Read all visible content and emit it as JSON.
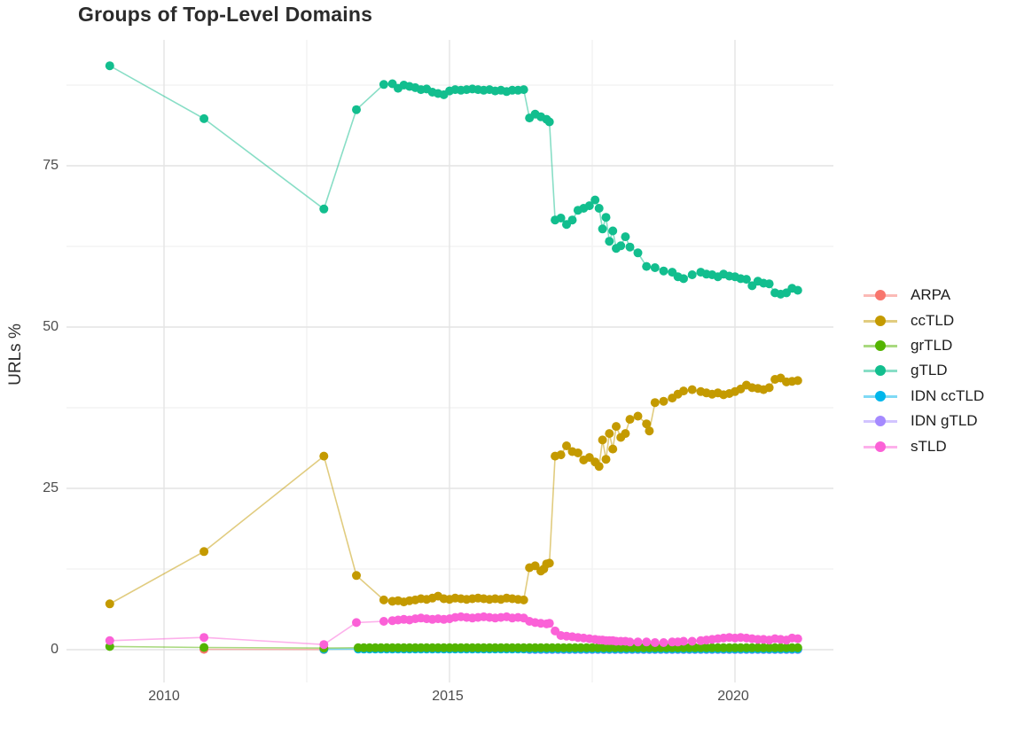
{
  "title": "Groups of Top-Level Domains",
  "axes": {
    "y_label": "URLs %",
    "y_ticks": [
      {
        "label": "0",
        "value": 0
      },
      {
        "label": "25",
        "value": 25
      },
      {
        "label": "50",
        "value": 50
      },
      {
        "label": "75",
        "value": 75
      }
    ],
    "y_minor": [
      12.5,
      37.5,
      62.5,
      87.5
    ],
    "x_ticks": [
      {
        "label": "2010",
        "value": 2010
      },
      {
        "label": "2015",
        "value": 2015
      },
      {
        "label": "2020",
        "value": 2020
      }
    ],
    "x_minor": [
      2012.5,
      2017.5
    ]
  },
  "colors": {
    "background": "#FFFFFF",
    "grid_major": "#E4E4E4",
    "grid_minor": "#F1F1F1",
    "title_text": "#2B2B2B",
    "tick_text": "#4D4D4D",
    "axis_label_text": "#2E2E2E",
    "legend_text": "#1C1C1C"
  },
  "legend": {
    "items": [
      {
        "key": "arpa",
        "label": "ARPA",
        "color": "#F8766D"
      },
      {
        "key": "cctld",
        "label": "ccTLD",
        "color": "#C49A00"
      },
      {
        "key": "grtld",
        "label": "grTLD",
        "color": "#53B400"
      },
      {
        "key": "gtld",
        "label": "gTLD",
        "color": "#12BE8E"
      },
      {
        "key": "idn-cctld",
        "label": "IDN ccTLD",
        "color": "#00B6EB"
      },
      {
        "key": "idn-gtld",
        "label": "IDN gTLD",
        "color": "#A58AFF"
      },
      {
        "key": "stld",
        "label": "sTLD",
        "color": "#FB61D7"
      }
    ]
  },
  "chart_data": {
    "type": "line",
    "title": "Groups of Top-Level Domains",
    "xlabel": "",
    "ylabel": "URLs %",
    "x_range": [
      2008.3,
      2021.7
    ],
    "y_range": [
      -5,
      94.5
    ],
    "grid": true,
    "legend_position": "right",
    "draw_order": [
      "arpa",
      "idn-gtld",
      "idn-cctld",
      "grtld",
      "gtld",
      "cctld",
      "stld"
    ],
    "series": [
      {
        "key": "arpa",
        "name": "ARPA",
        "color": "#F8766D",
        "points": [
          [
            2010.7,
            0.05
          ],
          [
            2012.8,
            0.03
          ]
        ]
      },
      {
        "key": "cctld",
        "name": "ccTLD",
        "color": "#C49A00",
        "points": [
          [
            2009.05,
            7.1
          ],
          [
            2010.7,
            15.2
          ],
          [
            2012.8,
            30.0
          ],
          [
            2013.37,
            11.5
          ],
          [
            2013.85,
            7.7
          ],
          [
            2014.0,
            7.5
          ],
          [
            2014.1,
            7.6
          ],
          [
            2014.2,
            7.4
          ],
          [
            2014.3,
            7.6
          ],
          [
            2014.4,
            7.7
          ],
          [
            2014.5,
            7.9
          ],
          [
            2014.6,
            7.8
          ],
          [
            2014.7,
            8.0
          ],
          [
            2014.8,
            8.3
          ],
          [
            2014.9,
            7.9
          ],
          [
            2015.0,
            7.8
          ],
          [
            2015.1,
            8.0
          ],
          [
            2015.2,
            7.9
          ],
          [
            2015.3,
            7.8
          ],
          [
            2015.4,
            7.9
          ],
          [
            2015.5,
            8.0
          ],
          [
            2015.6,
            7.9
          ],
          [
            2015.7,
            7.8
          ],
          [
            2015.8,
            7.9
          ],
          [
            2015.9,
            7.8
          ],
          [
            2016.0,
            8.0
          ],
          [
            2016.1,
            7.9
          ],
          [
            2016.2,
            7.8
          ],
          [
            2016.3,
            7.7
          ],
          [
            2016.4,
            12.7
          ],
          [
            2016.5,
            13.0
          ],
          [
            2016.6,
            12.2
          ],
          [
            2016.65,
            12.5
          ],
          [
            2016.7,
            13.3
          ],
          [
            2016.75,
            13.4
          ],
          [
            2016.85,
            30.0
          ],
          [
            2016.95,
            30.2
          ],
          [
            2017.05,
            31.6
          ],
          [
            2017.15,
            30.7
          ],
          [
            2017.25,
            30.5
          ],
          [
            2017.35,
            29.4
          ],
          [
            2017.45,
            29.8
          ],
          [
            2017.55,
            29.1
          ],
          [
            2017.62,
            28.4
          ],
          [
            2017.68,
            32.5
          ],
          [
            2017.74,
            29.5
          ],
          [
            2017.8,
            33.5
          ],
          [
            2017.86,
            31.1
          ],
          [
            2017.92,
            34.6
          ],
          [
            2018.0,
            32.9
          ],
          [
            2018.08,
            33.5
          ],
          [
            2018.16,
            35.7
          ],
          [
            2018.3,
            36.2
          ],
          [
            2018.45,
            35.0
          ],
          [
            2018.5,
            33.9
          ],
          [
            2018.6,
            38.3
          ],
          [
            2018.75,
            38.5
          ],
          [
            2018.9,
            39.0
          ],
          [
            2019.0,
            39.6
          ],
          [
            2019.1,
            40.1
          ],
          [
            2019.25,
            40.3
          ],
          [
            2019.4,
            40.0
          ],
          [
            2019.5,
            39.8
          ],
          [
            2019.6,
            39.6
          ],
          [
            2019.7,
            39.8
          ],
          [
            2019.8,
            39.5
          ],
          [
            2019.9,
            39.7
          ],
          [
            2020.0,
            40.0
          ],
          [
            2020.1,
            40.4
          ],
          [
            2020.2,
            41.0
          ],
          [
            2020.3,
            40.6
          ],
          [
            2020.4,
            40.5
          ],
          [
            2020.5,
            40.3
          ],
          [
            2020.6,
            40.6
          ],
          [
            2020.7,
            41.9
          ],
          [
            2020.8,
            42.1
          ],
          [
            2020.9,
            41.5
          ],
          [
            2021.0,
            41.6
          ],
          [
            2021.1,
            41.7
          ]
        ]
      },
      {
        "key": "grtld",
        "name": "grTLD",
        "color": "#53B400",
        "points": [
          [
            2009.05,
            0.5
          ],
          [
            2010.7,
            0.35
          ],
          [
            2012.8,
            0.25
          ],
          {
            "from": 2013.4,
            "to": 2021.1,
            "step": 0.1,
            "value": 0.3
          }
        ]
      },
      {
        "key": "gtld",
        "name": "gTLD",
        "color": "#12BE8E",
        "points": [
          [
            2009.05,
            90.5
          ],
          [
            2010.7,
            82.3
          ],
          [
            2012.8,
            68.3
          ],
          [
            2013.37,
            83.7
          ],
          [
            2013.85,
            87.6
          ],
          [
            2014.0,
            87.7
          ],
          [
            2014.1,
            87.0
          ],
          [
            2014.2,
            87.5
          ],
          [
            2014.3,
            87.3
          ],
          [
            2014.4,
            87.1
          ],
          [
            2014.5,
            86.8
          ],
          [
            2014.6,
            86.9
          ],
          [
            2014.7,
            86.4
          ],
          [
            2014.8,
            86.2
          ],
          [
            2014.9,
            86.0
          ],
          [
            2015.0,
            86.6
          ],
          [
            2015.1,
            86.8
          ],
          [
            2015.2,
            86.7
          ],
          [
            2015.3,
            86.8
          ],
          [
            2015.4,
            86.9
          ],
          [
            2015.5,
            86.8
          ],
          [
            2015.6,
            86.7
          ],
          [
            2015.7,
            86.8
          ],
          [
            2015.8,
            86.6
          ],
          [
            2015.9,
            86.7
          ],
          [
            2016.0,
            86.5
          ],
          [
            2016.1,
            86.7
          ],
          [
            2016.2,
            86.7
          ],
          [
            2016.3,
            86.8
          ],
          [
            2016.4,
            82.4
          ],
          [
            2016.5,
            83.0
          ],
          [
            2016.6,
            82.6
          ],
          [
            2016.7,
            82.2
          ],
          [
            2016.75,
            81.8
          ],
          [
            2016.85,
            66.6
          ],
          [
            2016.95,
            66.9
          ],
          [
            2017.05,
            65.9
          ],
          [
            2017.15,
            66.6
          ],
          [
            2017.25,
            68.1
          ],
          [
            2017.35,
            68.4
          ],
          [
            2017.45,
            68.8
          ],
          [
            2017.55,
            69.7
          ],
          [
            2017.62,
            68.4
          ],
          [
            2017.68,
            65.2
          ],
          [
            2017.74,
            67.0
          ],
          [
            2017.8,
            63.3
          ],
          [
            2017.86,
            64.9
          ],
          [
            2017.92,
            62.2
          ],
          [
            2018.0,
            62.6
          ],
          [
            2018.08,
            64.0
          ],
          [
            2018.16,
            62.4
          ],
          [
            2018.3,
            61.5
          ],
          [
            2018.45,
            59.4
          ],
          [
            2018.6,
            59.2
          ],
          [
            2018.75,
            58.7
          ],
          [
            2018.9,
            58.5
          ],
          [
            2019.0,
            57.8
          ],
          [
            2019.1,
            57.5
          ],
          [
            2019.25,
            58.1
          ],
          [
            2019.4,
            58.5
          ],
          [
            2019.5,
            58.2
          ],
          [
            2019.6,
            58.1
          ],
          [
            2019.7,
            57.8
          ],
          [
            2019.8,
            58.2
          ],
          [
            2019.9,
            57.9
          ],
          [
            2020.0,
            57.8
          ],
          [
            2020.1,
            57.5
          ],
          [
            2020.2,
            57.4
          ],
          [
            2020.3,
            56.4
          ],
          [
            2020.4,
            57.1
          ],
          [
            2020.5,
            56.8
          ],
          [
            2020.6,
            56.7
          ],
          [
            2020.7,
            55.3
          ],
          [
            2020.8,
            55.1
          ],
          [
            2020.9,
            55.3
          ],
          [
            2021.0,
            56.0
          ],
          [
            2021.1,
            55.7
          ]
        ]
      },
      {
        "key": "idn-cctld",
        "name": "IDN ccTLD",
        "color": "#00B6EB",
        "points": [
          [
            2012.8,
            0.05
          ],
          {
            "from": 2013.4,
            "to": 2021.1,
            "step": 0.1,
            "value": 0.1
          }
        ]
      },
      {
        "key": "idn-gtld",
        "name": "IDN gTLD",
        "color": "#A58AFF",
        "points": [
          {
            "from": 2016.4,
            "to": 2021.1,
            "step": 0.1,
            "value": 0.02
          }
        ]
      },
      {
        "key": "stld",
        "name": "sTLD",
        "color": "#FB61D7",
        "points": [
          [
            2009.05,
            1.4
          ],
          [
            2010.7,
            1.9
          ],
          [
            2012.8,
            0.8
          ],
          [
            2013.37,
            4.2
          ],
          [
            2013.85,
            4.4
          ],
          [
            2014.0,
            4.5
          ],
          [
            2014.1,
            4.6
          ],
          [
            2014.2,
            4.7
          ],
          [
            2014.3,
            4.6
          ],
          [
            2014.4,
            4.8
          ],
          [
            2014.5,
            4.9
          ],
          [
            2014.6,
            4.8
          ],
          [
            2014.7,
            4.7
          ],
          [
            2014.8,
            4.8
          ],
          [
            2014.9,
            4.7
          ],
          [
            2015.0,
            4.8
          ],
          [
            2015.1,
            5.0
          ],
          [
            2015.2,
            5.1
          ],
          [
            2015.3,
            5.0
          ],
          [
            2015.4,
            4.9
          ],
          [
            2015.5,
            5.0
          ],
          [
            2015.6,
            5.1
          ],
          [
            2015.7,
            5.0
          ],
          [
            2015.8,
            4.9
          ],
          [
            2015.9,
            5.0
          ],
          [
            2016.0,
            5.1
          ],
          [
            2016.1,
            4.9
          ],
          [
            2016.2,
            5.0
          ],
          [
            2016.3,
            4.9
          ],
          [
            2016.4,
            4.4
          ],
          [
            2016.5,
            4.2
          ],
          [
            2016.6,
            4.1
          ],
          [
            2016.7,
            4.0
          ],
          [
            2016.75,
            4.1
          ],
          [
            2016.85,
            2.9
          ],
          [
            2016.95,
            2.2
          ],
          [
            2017.05,
            2.1
          ],
          [
            2017.15,
            2.0
          ],
          [
            2017.25,
            1.9
          ],
          [
            2017.35,
            1.8
          ],
          [
            2017.45,
            1.7
          ],
          [
            2017.55,
            1.6
          ],
          [
            2017.62,
            1.5
          ],
          [
            2017.68,
            1.5
          ],
          [
            2017.74,
            1.4
          ],
          [
            2017.8,
            1.4
          ],
          [
            2017.86,
            1.4
          ],
          [
            2017.92,
            1.3
          ],
          [
            2018.0,
            1.3
          ],
          [
            2018.08,
            1.3
          ],
          [
            2018.16,
            1.2
          ],
          [
            2018.3,
            1.2
          ],
          [
            2018.45,
            1.2
          ],
          [
            2018.6,
            1.1
          ],
          [
            2018.75,
            1.1
          ],
          [
            2018.9,
            1.2
          ],
          [
            2019.0,
            1.2
          ],
          [
            2019.1,
            1.3
          ],
          [
            2019.25,
            1.3
          ],
          [
            2019.4,
            1.4
          ],
          [
            2019.5,
            1.5
          ],
          [
            2019.6,
            1.6
          ],
          [
            2019.7,
            1.7
          ],
          [
            2019.8,
            1.8
          ],
          [
            2019.9,
            1.9
          ],
          [
            2020.0,
            1.8
          ],
          [
            2020.1,
            1.9
          ],
          [
            2020.2,
            1.8
          ],
          [
            2020.3,
            1.7
          ],
          [
            2020.4,
            1.6
          ],
          [
            2020.5,
            1.6
          ],
          [
            2020.6,
            1.5
          ],
          [
            2020.7,
            1.7
          ],
          [
            2020.8,
            1.6
          ],
          [
            2020.9,
            1.5
          ],
          [
            2021.0,
            1.8
          ],
          [
            2021.1,
            1.7
          ]
        ]
      }
    ]
  }
}
